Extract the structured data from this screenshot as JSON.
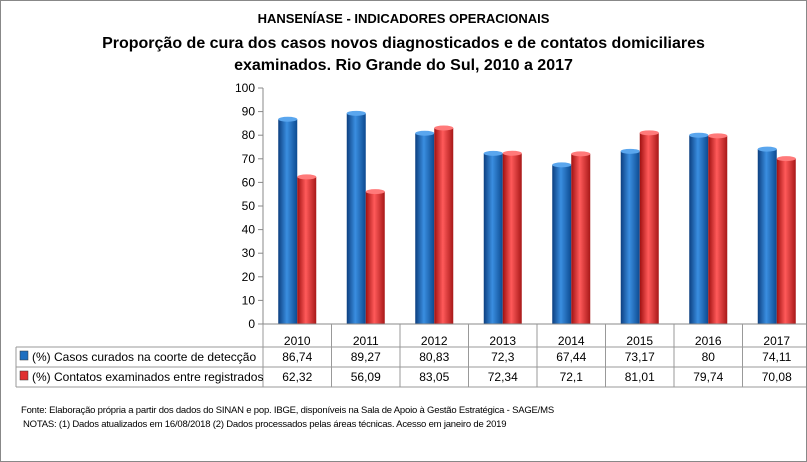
{
  "chart_data": {
    "type": "bar",
    "title": "HANSENÍASE - INDICADORES OPERACIONAIS",
    "subtitle": [
      "Proporção de cura dos casos novos diagnosticados e de contatos domiciliares",
      "examinados.  Rio Grande do Sul, 2010 a 2017"
    ],
    "categories": [
      "2010",
      "2011",
      "2012",
      "2013",
      "2014",
      "2015",
      "2016",
      "2017"
    ],
    "series": [
      {
        "name": "(%) Casos curados na coorte de detecção",
        "values": [
          86.74,
          89.27,
          80.83,
          72.3,
          67.44,
          73.17,
          80,
          74.11
        ],
        "labels": [
          "86,74",
          "89,27",
          "80,83",
          "72,3",
          "67,44",
          "73,17",
          "80",
          "74,11"
        ],
        "color": "#1f6fc0"
      },
      {
        "name": "(%) Contatos examinados entre registrados",
        "values": [
          62.32,
          56.09,
          83.05,
          72.34,
          72.1,
          81.01,
          79.74,
          70.08
        ],
        "labels": [
          "62,32",
          "56,09",
          "83,05",
          "72,34",
          "72,1",
          "81,01",
          "79,74",
          "70,08"
        ],
        "color": "#e03030"
      }
    ],
    "ylim": [
      0,
      100
    ],
    "yticks": [
      "0",
      "10",
      "20",
      "30",
      "40",
      "50",
      "60",
      "70",
      "80",
      "90",
      "100"
    ],
    "grid": false,
    "legend": "data-table"
  },
  "footer": {
    "source": "Fonte:  Elaboração própria a partir dos dados do  SINAN  e  pop. IBGE, disponíveis na Sala de Apoio à Gestão Estratégica -  SAGE/MS",
    "notes": "NOTAS: (1) Dados atualizados em 16/08/2018 (2) Dados processados pelas áreas técnicas. Acesso em janeiro de 2019"
  }
}
